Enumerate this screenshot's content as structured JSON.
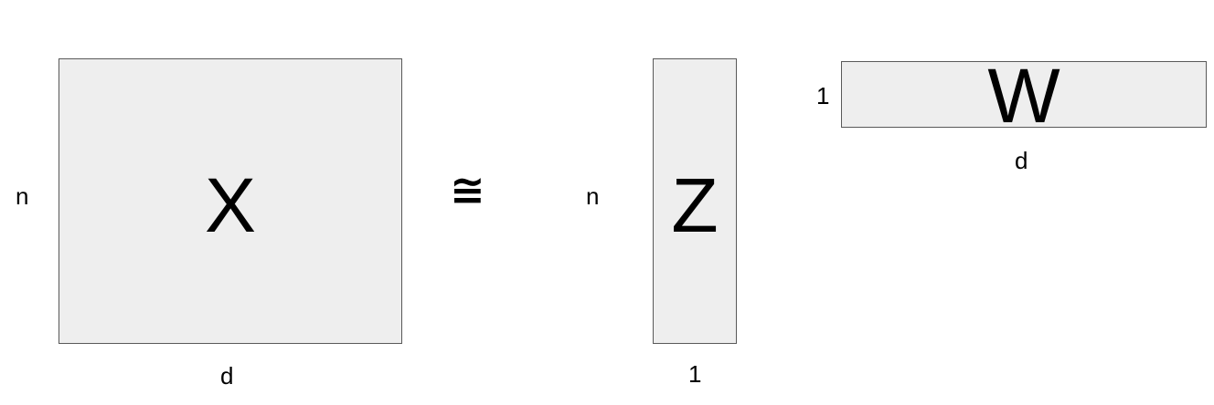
{
  "lhs": {
    "matrix_label": "X",
    "rows_label": "n",
    "cols_label": "d"
  },
  "operator": "≅",
  "factor_z": {
    "matrix_label": "Z",
    "rows_label": "n",
    "cols_label": "1"
  },
  "factor_w": {
    "matrix_label": "W",
    "rows_label": "1",
    "cols_label": "d"
  },
  "colors": {
    "matrix_fill": "#eeeeee",
    "matrix_border": "#595959",
    "text": "#000000",
    "background": "#ffffff"
  }
}
